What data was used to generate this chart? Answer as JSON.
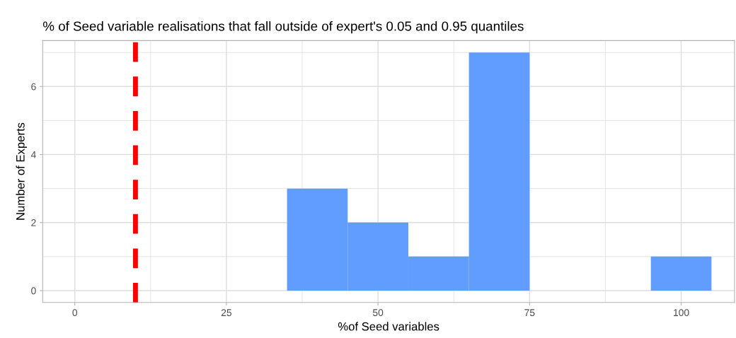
{
  "chart_data": {
    "type": "histogram",
    "title": "% of Seed variable realisations that fall outside of expert's 0.05 and 0.95 quantiles",
    "xlabel": "%of Seed variables",
    "ylabel": "Number of Experts",
    "bins": [
      35,
      45,
      55,
      65,
      75,
      85,
      95,
      105
    ],
    "values": [
      3,
      2,
      1,
      7,
      0,
      0,
      1
    ],
    "color": "#619cff",
    "xlim": [
      -5.3,
      108.8
    ],
    "ylim": [
      -0.35,
      7.35
    ],
    "xticks": [
      0,
      {
        "value": 12.5,
        "label": null
      },
      25,
      {
        "value": 37.5,
        "label": null
      },
      50,
      {
        "value": 62.5,
        "label": null
      },
      75,
      {
        "value": 87.5,
        "label": null
      },
      100
    ],
    "yticks": [
      0,
      {
        "value": 1,
        "label": null
      },
      2,
      {
        "value": 3,
        "label": null
      },
      4,
      {
        "value": 5,
        "label": null
      },
      6,
      {
        "value": 7,
        "label": null
      }
    ],
    "ref_lines": [
      {
        "axis": "x",
        "value": 10,
        "color": "#ff0000",
        "line_style": "dashed"
      }
    ],
    "grid": true
  }
}
